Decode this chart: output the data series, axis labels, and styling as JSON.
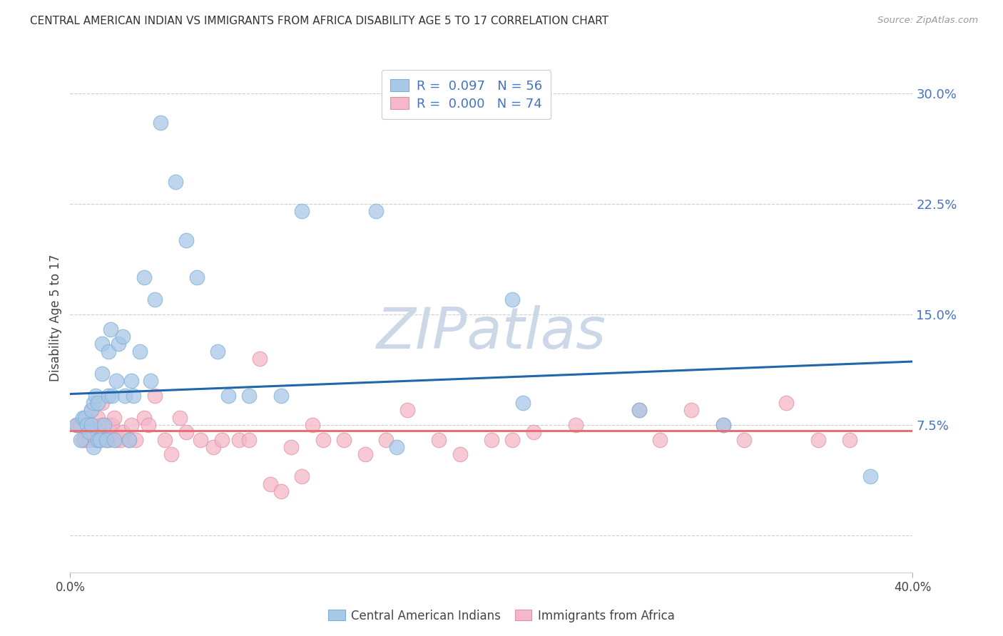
{
  "title": "CENTRAL AMERICAN INDIAN VS IMMIGRANTS FROM AFRICA DISABILITY AGE 5 TO 17 CORRELATION CHART",
  "source": "Source: ZipAtlas.com",
  "ylabel": "Disability Age 5 to 17",
  "y_ticks": [
    0.0,
    0.075,
    0.15,
    0.225,
    0.3
  ],
  "y_tick_labels": [
    "",
    "7.5%",
    "15.0%",
    "22.5%",
    "30.0%"
  ],
  "x_min": 0.0,
  "x_max": 0.4,
  "y_min": -0.025,
  "y_max": 0.32,
  "color_blue": "#a8c8e8",
  "color_pink": "#f4b8c8",
  "color_line_blue": "#2166ac",
  "color_line_pink": "#e87070",
  "color_ytick": "#4472c4",
  "watermark_color": "#ccd8e8",
  "blue_x": [
    0.003,
    0.005,
    0.006,
    0.007,
    0.008,
    0.009,
    0.01,
    0.01,
    0.011,
    0.011,
    0.012,
    0.013,
    0.013,
    0.014,
    0.015,
    0.015,
    0.016,
    0.017,
    0.018,
    0.018,
    0.019,
    0.02,
    0.021,
    0.022,
    0.023,
    0.025,
    0.026,
    0.028,
    0.029,
    0.03,
    0.033,
    0.035,
    0.038,
    0.04,
    0.043,
    0.05,
    0.055,
    0.06,
    0.07,
    0.075,
    0.085,
    0.1,
    0.11,
    0.145,
    0.155,
    0.21,
    0.215,
    0.27,
    0.31,
    0.38
  ],
  "blue_y": [
    0.075,
    0.065,
    0.08,
    0.08,
    0.075,
    0.07,
    0.075,
    0.085,
    0.09,
    0.06,
    0.095,
    0.065,
    0.09,
    0.065,
    0.13,
    0.11,
    0.075,
    0.065,
    0.095,
    0.125,
    0.14,
    0.095,
    0.065,
    0.105,
    0.13,
    0.135,
    0.095,
    0.065,
    0.105,
    0.095,
    0.125,
    0.175,
    0.105,
    0.16,
    0.28,
    0.24,
    0.2,
    0.175,
    0.125,
    0.095,
    0.095,
    0.095,
    0.22,
    0.22,
    0.06,
    0.16,
    0.09,
    0.085,
    0.075,
    0.04
  ],
  "pink_x": [
    0.003,
    0.004,
    0.005,
    0.006,
    0.007,
    0.008,
    0.009,
    0.01,
    0.01,
    0.011,
    0.012,
    0.013,
    0.013,
    0.014,
    0.015,
    0.015,
    0.016,
    0.017,
    0.018,
    0.018,
    0.019,
    0.02,
    0.021,
    0.022,
    0.024,
    0.025,
    0.028,
    0.029,
    0.031,
    0.035,
    0.037,
    0.04,
    0.045,
    0.048,
    0.052,
    0.055,
    0.062,
    0.068,
    0.072,
    0.08,
    0.085,
    0.09,
    0.095,
    0.1,
    0.105,
    0.11,
    0.115,
    0.12,
    0.13,
    0.14,
    0.15,
    0.16,
    0.175,
    0.185,
    0.2,
    0.21,
    0.22,
    0.24,
    0.27,
    0.28,
    0.295,
    0.31,
    0.32,
    0.34,
    0.355,
    0.37
  ],
  "pink_y": [
    0.075,
    0.075,
    0.075,
    0.065,
    0.065,
    0.08,
    0.065,
    0.075,
    0.085,
    0.075,
    0.065,
    0.08,
    0.07,
    0.065,
    0.075,
    0.09,
    0.07,
    0.065,
    0.075,
    0.065,
    0.07,
    0.075,
    0.08,
    0.065,
    0.065,
    0.07,
    0.065,
    0.075,
    0.065,
    0.08,
    0.075,
    0.095,
    0.065,
    0.055,
    0.08,
    0.07,
    0.065,
    0.06,
    0.065,
    0.065,
    0.065,
    0.12,
    0.035,
    0.03,
    0.06,
    0.04,
    0.075,
    0.065,
    0.065,
    0.055,
    0.065,
    0.085,
    0.065,
    0.055,
    0.065,
    0.065,
    0.07,
    0.075,
    0.085,
    0.065,
    0.085,
    0.075,
    0.065,
    0.09,
    0.065,
    0.065
  ],
  "blue_line_x": [
    0.0,
    0.4
  ],
  "blue_line_y": [
    0.096,
    0.118
  ],
  "pink_line_x": [
    0.0,
    0.4
  ],
  "pink_line_y": [
    0.071,
    0.071
  ]
}
